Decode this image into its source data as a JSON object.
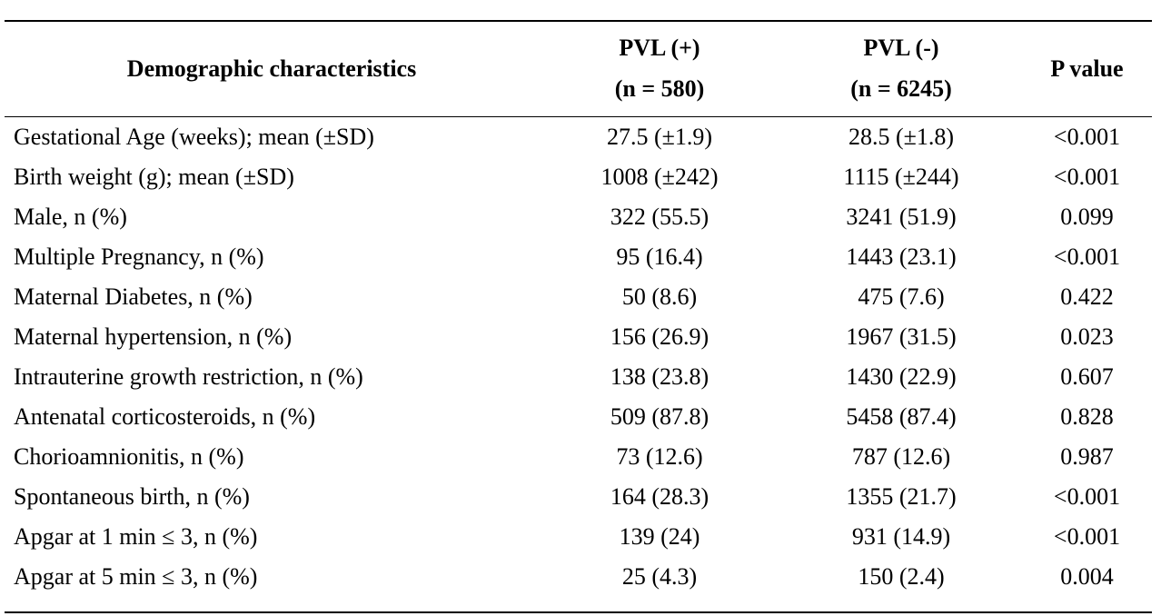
{
  "table": {
    "headers": {
      "characteristic": "Demographic characteristics",
      "pvl_pos_line1": "PVL (+)",
      "pvl_pos_line2": "(n = 580)",
      "pvl_neg_line1": "PVL (-)",
      "pvl_neg_line2": "(n = 6245)",
      "p_value": "P value"
    },
    "rows": [
      {
        "label": "Gestational Age (weeks); mean (±SD)",
        "pvl_pos": "27.5 (±1.9)",
        "pvl_neg": "28.5 (±1.8)",
        "p": "<0.001"
      },
      {
        "label": "Birth weight (g); mean (±SD)",
        "pvl_pos": "1008 (±242)",
        "pvl_neg": "1115 (±244)",
        "p": "<0.001"
      },
      {
        "label": "Male, n (%)",
        "pvl_pos": "322 (55.5)",
        "pvl_neg": "3241 (51.9)",
        "p": "0.099"
      },
      {
        "label": "Multiple Pregnancy, n (%)",
        "pvl_pos": "95 (16.4)",
        "pvl_neg": "1443 (23.1)",
        "p": "<0.001"
      },
      {
        "label": "Maternal Diabetes, n (%)",
        "pvl_pos": "50 (8.6)",
        "pvl_neg": "475 (7.6)",
        "p": "0.422"
      },
      {
        "label": "Maternal hypertension, n (%)",
        "pvl_pos": "156 (26.9)",
        "pvl_neg": "1967 (31.5)",
        "p": "0.023"
      },
      {
        "label": "Intrauterine growth restriction, n (%)",
        "pvl_pos": "138 (23.8)",
        "pvl_neg": "1430 (22.9)",
        "p": "0.607"
      },
      {
        "label": "Antenatal corticosteroids, n (%)",
        "pvl_pos": "509 (87.8)",
        "pvl_neg": "5458 (87.4)",
        "p": "0.828"
      },
      {
        "label": "Chorioamnionitis, n (%)",
        "pvl_pos": "73 (12.6)",
        "pvl_neg": "787 (12.6)",
        "p": "0.987"
      },
      {
        "label": "Spontaneous birth, n (%)",
        "pvl_pos": "164 (28.3)",
        "pvl_neg": "1355 (21.7)",
        "p": "<0.001"
      },
      {
        "label": "Apgar at 1 min ≤ 3, n (%)",
        "pvl_pos": "139 (24)",
        "pvl_neg": "931 (14.9)",
        "p": "<0.001"
      },
      {
        "label": "Apgar at 5 min ≤ 3, n (%)",
        "pvl_pos": "25 (4.3)",
        "pvl_neg": "150 (2.4)",
        "p": "0.004"
      }
    ]
  }
}
